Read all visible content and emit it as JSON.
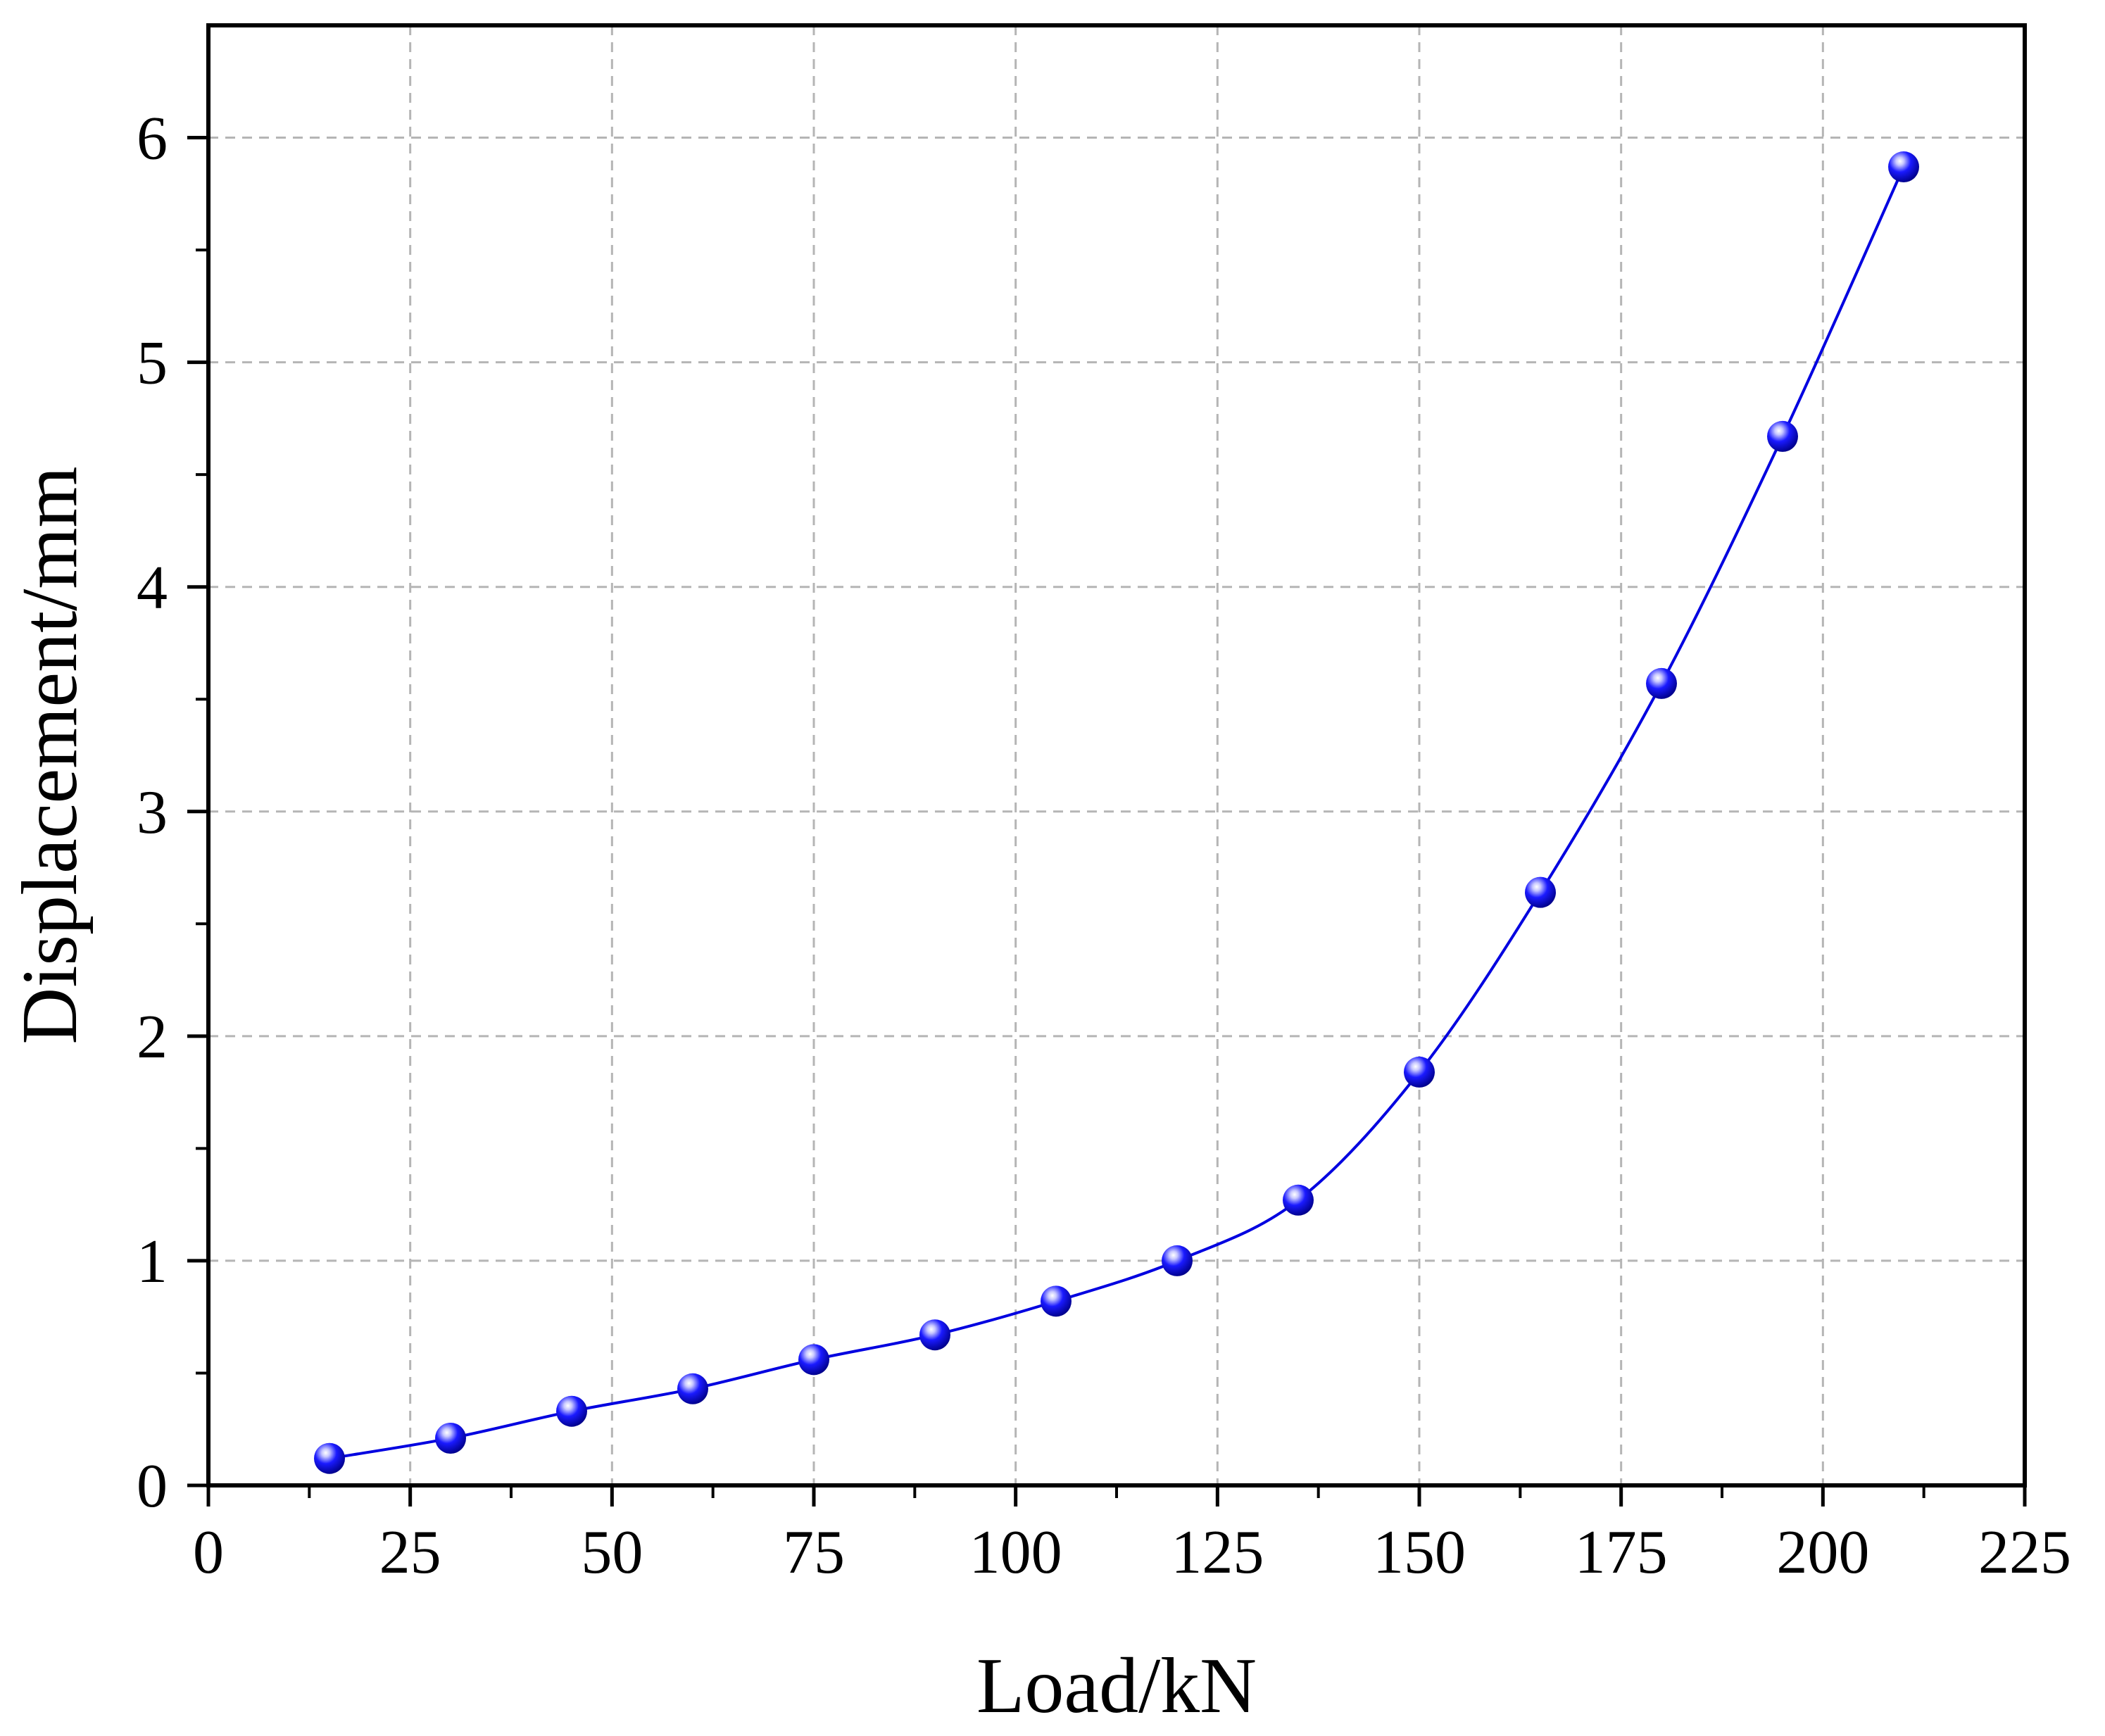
{
  "chart_data": {
    "type": "line",
    "title": "",
    "xlabel": "Load/kN",
    "ylabel": "Displacement/mm",
    "xlim": [
      0,
      225
    ],
    "ylim": [
      0,
      6.5
    ],
    "xticks": [
      0,
      25,
      50,
      75,
      100,
      125,
      150,
      175,
      200,
      225
    ],
    "yticks": [
      0,
      1,
      2,
      3,
      4,
      5,
      6
    ],
    "grid": true,
    "legend": "none",
    "series": [
      {
        "x": [
          15,
          30,
          45,
          60,
          75,
          90,
          105,
          120,
          135,
          150,
          165,
          180,
          195,
          210
        ],
        "y": [
          0.12,
          0.21,
          0.33,
          0.43,
          0.56,
          0.67,
          0.82,
          1.0,
          1.27,
          1.84,
          2.64,
          3.57,
          4.67,
          5.87
        ],
        "color": "#0000e0",
        "marker": "sphere"
      }
    ]
  }
}
